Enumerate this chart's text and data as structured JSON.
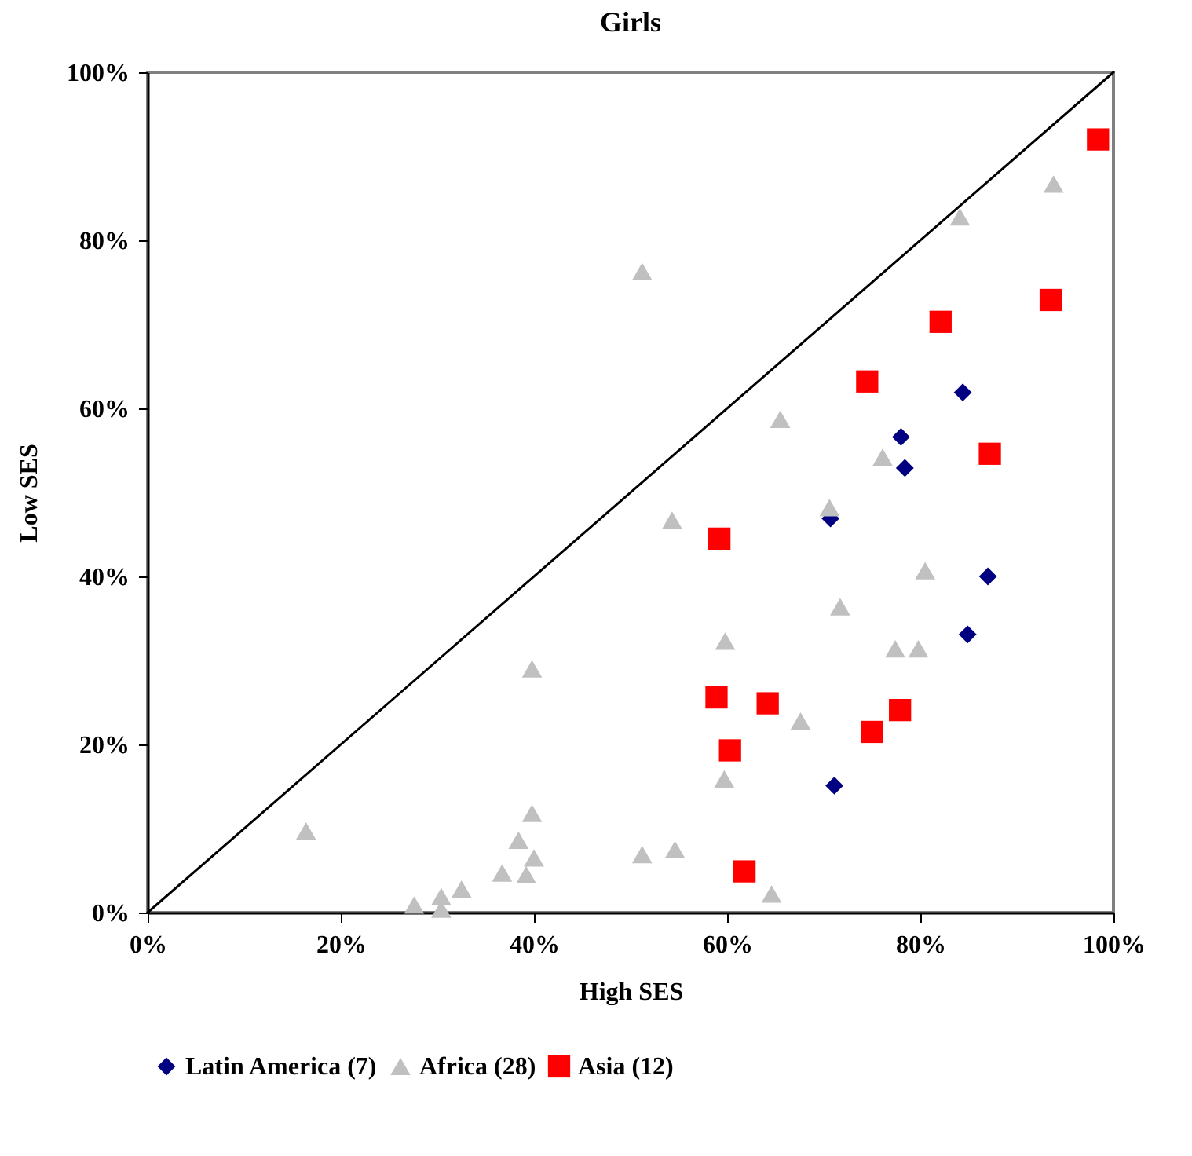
{
  "chart_data": {
    "type": "scatter",
    "title": "Girls",
    "xlabel": "High SES",
    "ylabel": "Low SES",
    "xlim": [
      0,
      100
    ],
    "ylim": [
      0,
      100
    ],
    "xticks": [
      {
        "value": 0,
        "label": "0%"
      },
      {
        "value": 20,
        "label": "20%"
      },
      {
        "value": 40,
        "label": "40%"
      },
      {
        "value": 60,
        "label": "60%"
      },
      {
        "value": 80,
        "label": "80%"
      },
      {
        "value": 100,
        "label": "100%"
      }
    ],
    "yticks": [
      {
        "value": 0,
        "label": "0%"
      },
      {
        "value": 20,
        "label": "20%"
      },
      {
        "value": 40,
        "label": "40%"
      },
      {
        "value": 60,
        "label": "60%"
      },
      {
        "value": 80,
        "label": "80%"
      },
      {
        "value": 100,
        "label": "100%"
      }
    ],
    "grid": false,
    "legend": "bottom",
    "series": [
      {
        "type": "line",
        "color": "#000000",
        "line_style": "solid",
        "x": [
          0,
          100
        ],
        "values": [
          0,
          100
        ]
      },
      {
        "name": "Latin America (7)",
        "color": "#000080",
        "marker": "diamond",
        "x": [
          84.4,
          78.0,
          78.4,
          70.7,
          87.0,
          84.9,
          71.1
        ],
        "values": [
          61.9,
          56.6,
          52.9,
          46.9,
          40.0,
          33.1,
          15.1
        ]
      },
      {
        "name": "Africa (28)",
        "color": "#c0c0c0",
        "marker": "triangle",
        "x": [
          93.8,
          84.1,
          51.2,
          65.5,
          76.1,
          70.6,
          54.3,
          59.8,
          71.7,
          80.5,
          77.4,
          79.8,
          67.6,
          59.7,
          39.8,
          16.4,
          39.8,
          38.4,
          40.0,
          39.2,
          36.7,
          32.5,
          30.4,
          30.4,
          27.6,
          51.2,
          54.6,
          64.6
        ],
        "values": [
          86.7,
          82.8,
          76.3,
          58.7,
          54.2,
          48.2,
          46.7,
          32.3,
          36.4,
          40.7,
          31.4,
          31.4,
          22.8,
          15.9,
          29.0,
          9.7,
          11.8,
          8.6,
          6.5,
          4.5,
          4.7,
          2.8,
          1.9,
          0.4,
          0.9,
          6.9,
          7.5,
          2.2
        ]
      },
      {
        "name": "Asia (12)",
        "color": "#ff0000",
        "marker": "square",
        "x": [
          98.4,
          82.1,
          93.5,
          74.5,
          87.2,
          59.2,
          58.9,
          64.2,
          60.3,
          75.0,
          77.9,
          61.8
        ],
        "values": [
          92.0,
          70.3,
          72.9,
          63.2,
          54.6,
          44.5,
          25.6,
          24.9,
          19.3,
          21.5,
          24.1,
          4.9
        ]
      }
    ]
  }
}
